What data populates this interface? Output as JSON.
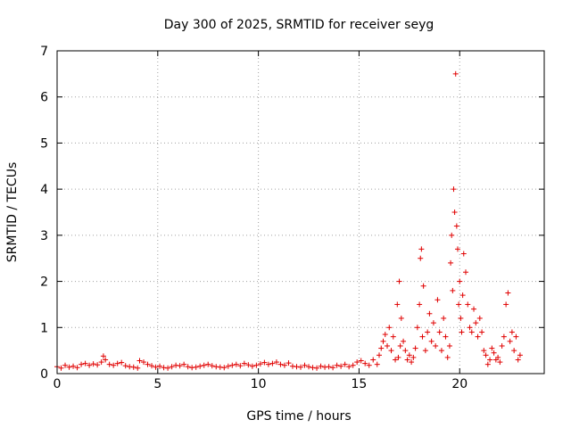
{
  "chart_data": {
    "type": "scatter",
    "title": "Day 300 of 2025, SRMTID for receiver seyg",
    "xlabel": "GPS time / hours",
    "ylabel": "SRMTID / TECUs",
    "xlim": [
      0,
      24.2
    ],
    "ylim": [
      0,
      7
    ],
    "xticks": [
      0,
      5,
      10,
      15,
      20
    ],
    "yticks": [
      0,
      1,
      2,
      3,
      4,
      5,
      6,
      7
    ],
    "grid": true,
    "series": [
      {
        "name": "SRMTID",
        "color": "#e00000",
        "marker": "plus",
        "x": [
          0.0,
          0.2,
          0.4,
          0.6,
          0.8,
          1.0,
          1.2,
          1.4,
          1.6,
          1.8,
          2.0,
          2.2,
          2.3,
          2.4,
          2.6,
          2.8,
          3.0,
          3.2,
          3.4,
          3.6,
          3.8,
          4.0,
          4.1,
          4.3,
          4.5,
          4.7,
          4.9,
          5.1,
          5.3,
          5.5,
          5.7,
          5.9,
          6.1,
          6.3,
          6.5,
          6.7,
          6.9,
          7.1,
          7.3,
          7.5,
          7.7,
          7.9,
          8.1,
          8.3,
          8.5,
          8.7,
          8.9,
          9.1,
          9.3,
          9.5,
          9.7,
          9.9,
          10.1,
          10.3,
          10.5,
          10.7,
          10.9,
          11.1,
          11.3,
          11.5,
          11.7,
          11.9,
          12.1,
          12.3,
          12.5,
          12.7,
          12.9,
          13.1,
          13.3,
          13.5,
          13.7,
          13.9,
          14.1,
          14.3,
          14.5,
          14.7,
          14.9,
          15.1,
          15.3,
          15.5,
          15.7,
          15.9,
          16.0,
          16.1,
          16.2,
          16.3,
          16.4,
          16.5,
          16.6,
          16.7,
          16.8,
          16.9,
          16.95,
          17.0,
          17.05,
          17.1,
          17.2,
          17.3,
          17.4,
          17.5,
          17.6,
          17.7,
          17.8,
          17.9,
          18.0,
          18.05,
          18.1,
          18.15,
          18.2,
          18.3,
          18.4,
          18.5,
          18.6,
          18.7,
          18.8,
          18.9,
          19.0,
          19.1,
          19.2,
          19.3,
          19.4,
          19.5,
          19.55,
          19.6,
          19.65,
          19.7,
          19.75,
          19.8,
          19.85,
          19.9,
          19.95,
          20.0,
          20.05,
          20.1,
          20.15,
          20.2,
          20.3,
          20.4,
          20.5,
          20.6,
          20.7,
          20.8,
          20.9,
          21.0,
          21.1,
          21.2,
          21.3,
          21.4,
          21.5,
          21.6,
          21.7,
          21.8,
          21.9,
          22.0,
          22.1,
          22.2,
          22.3,
          22.4,
          22.5,
          22.6,
          22.7,
          22.8,
          22.9,
          23.0
        ],
        "y": [
          0.15,
          0.12,
          0.18,
          0.14,
          0.16,
          0.13,
          0.2,
          0.22,
          0.18,
          0.21,
          0.19,
          0.25,
          0.38,
          0.3,
          0.2,
          0.18,
          0.22,
          0.24,
          0.17,
          0.15,
          0.14,
          0.12,
          0.28,
          0.25,
          0.2,
          0.17,
          0.14,
          0.16,
          0.13,
          0.12,
          0.15,
          0.18,
          0.17,
          0.2,
          0.15,
          0.13,
          0.14,
          0.16,
          0.18,
          0.2,
          0.17,
          0.15,
          0.14,
          0.13,
          0.16,
          0.18,
          0.2,
          0.17,
          0.22,
          0.19,
          0.16,
          0.18,
          0.21,
          0.24,
          0.2,
          0.22,
          0.25,
          0.2,
          0.18,
          0.23,
          0.16,
          0.15,
          0.14,
          0.18,
          0.15,
          0.13,
          0.12,
          0.16,
          0.14,
          0.15,
          0.13,
          0.18,
          0.16,
          0.2,
          0.15,
          0.18,
          0.25,
          0.28,
          0.22,
          0.18,
          0.3,
          0.2,
          0.4,
          0.55,
          0.7,
          0.85,
          0.6,
          1.0,
          0.5,
          0.8,
          0.3,
          1.5,
          0.35,
          2.0,
          0.6,
          1.2,
          0.7,
          0.5,
          0.3,
          0.4,
          0.25,
          0.35,
          0.55,
          1.0,
          1.5,
          2.5,
          2.7,
          0.8,
          1.9,
          0.5,
          0.9,
          1.3,
          0.7,
          1.1,
          0.6,
          1.6,
          0.9,
          0.5,
          1.2,
          0.8,
          0.35,
          0.6,
          2.4,
          3.0,
          1.8,
          4.0,
          3.5,
          6.5,
          3.2,
          2.7,
          1.5,
          2.0,
          1.2,
          0.9,
          1.7,
          2.6,
          2.2,
          1.5,
          1.0,
          0.9,
          1.4,
          1.1,
          0.8,
          1.2,
          0.9,
          0.5,
          0.4,
          0.2,
          0.3,
          0.55,
          0.45,
          0.3,
          0.35,
          0.25,
          0.6,
          0.8,
          1.5,
          1.75,
          0.7,
          0.9,
          0.5,
          0.8,
          0.3,
          0.4
        ]
      }
    ]
  }
}
